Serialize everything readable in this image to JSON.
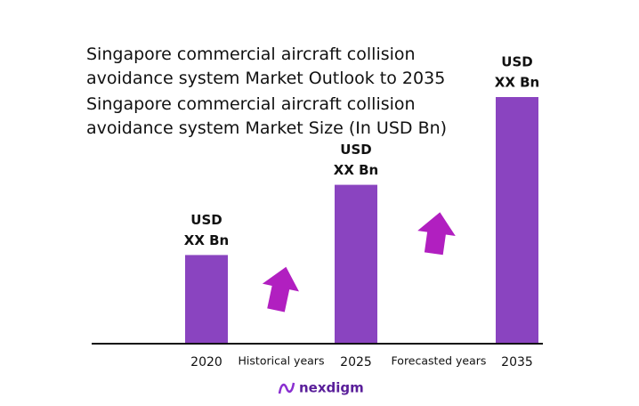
{
  "chart_data": {
    "type": "bar",
    "title": "Singapore commercial aircraft collision avoidance system Market Outlook to 2035",
    "subtitle": "Singapore commercial aircraft collision avoidance system Market Size (In USD Bn)",
    "categories": [
      "2020",
      "2025",
      "2035"
    ],
    "values": [
      1,
      1.8,
      2.8
    ],
    "value_labels": [
      [
        "USD",
        "XX Bn"
      ],
      [
        "USD",
        "XX Bn"
      ],
      [
        "USD",
        "XX Bn"
      ]
    ],
    "color": "#8a44c0",
    "annotations": [
      "Historical years",
      "Forecasted years"
    ],
    "brand": "nexdigm"
  }
}
